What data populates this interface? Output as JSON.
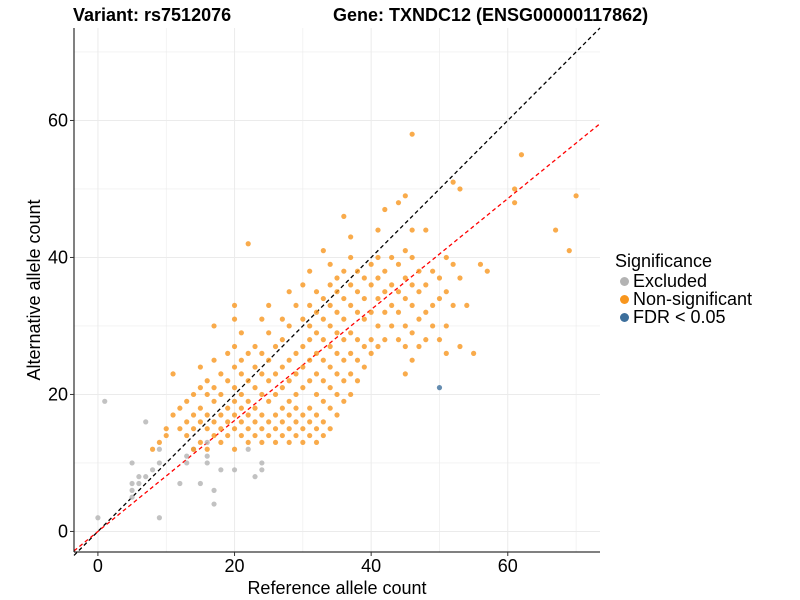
{
  "header": {
    "variant": "Variant: rs7512076",
    "gene": "Gene: TXNDC12 (ENSG00000117862)"
  },
  "legend": {
    "title": "Significance",
    "items": [
      {
        "label": "Excluded",
        "color": "#b3b3b3"
      },
      {
        "label": "Non-significant",
        "color": "#f8961e"
      },
      {
        "label": "FDR < 0.05",
        "color": "#3d6f9c"
      }
    ]
  },
  "chart_data": {
    "type": "scatter",
    "xlabel": "Reference allele count",
    "ylabel": "Alternative allele count",
    "xlim": [
      -3.5,
      73.5
    ],
    "ylim": [
      -3,
      73.5
    ],
    "xticks": [
      0,
      20,
      40,
      60
    ],
    "yticks": [
      0,
      20,
      40,
      60
    ],
    "grid": true,
    "legend_position": "right",
    "reference_lines": [
      {
        "name": "identity",
        "slope": 1,
        "intercept": 0,
        "color": "#000000",
        "style": "dashed"
      },
      {
        "name": "fit",
        "slope": 0.81,
        "intercept": 0,
        "color": "#ff0000",
        "style": "dashed"
      }
    ],
    "series": [
      {
        "name": "Excluded",
        "color": "#b3b3b3",
        "points": [
          [
            0,
            2
          ],
          [
            1,
            19
          ],
          [
            5,
            5
          ],
          [
            5,
            6
          ],
          [
            5,
            7
          ],
          [
            5,
            10
          ],
          [
            6,
            7
          ],
          [
            6,
            8
          ],
          [
            7,
            8
          ],
          [
            7,
            16
          ],
          [
            8,
            9
          ],
          [
            9,
            2
          ],
          [
            9,
            10
          ],
          [
            9,
            12
          ],
          [
            12,
            7
          ],
          [
            13,
            10
          ],
          [
            13,
            11
          ],
          [
            14,
            12
          ],
          [
            15,
            7
          ],
          [
            16,
            10
          ],
          [
            16,
            11
          ],
          [
            16,
            13
          ],
          [
            17,
            4
          ],
          [
            17,
            6
          ],
          [
            18,
            9
          ],
          [
            20,
            9
          ],
          [
            22,
            12
          ],
          [
            23,
            8
          ],
          [
            24,
            9
          ],
          [
            24,
            10
          ]
        ]
      },
      {
        "name": "Non-significant",
        "color": "#f8961e",
        "points": [
          [
            8,
            12
          ],
          [
            9,
            13
          ],
          [
            10,
            14
          ],
          [
            10,
            15
          ],
          [
            11,
            17
          ],
          [
            11,
            23
          ],
          [
            12,
            15
          ],
          [
            12,
            18
          ],
          [
            13,
            14
          ],
          [
            13,
            16
          ],
          [
            13,
            19
          ],
          [
            14,
            12
          ],
          [
            14,
            15
          ],
          [
            14,
            17
          ],
          [
            14,
            20
          ],
          [
            15,
            13
          ],
          [
            15,
            16
          ],
          [
            15,
            18
          ],
          [
            15,
            21
          ],
          [
            15,
            24
          ],
          [
            16,
            12
          ],
          [
            16,
            15
          ],
          [
            16,
            17
          ],
          [
            16,
            20
          ],
          [
            16,
            22
          ],
          [
            17,
            14
          ],
          [
            17,
            16
          ],
          [
            17,
            19
          ],
          [
            17,
            21
          ],
          [
            17,
            25
          ],
          [
            17,
            30
          ],
          [
            18,
            13
          ],
          [
            18,
            15
          ],
          [
            18,
            17
          ],
          [
            18,
            20
          ],
          [
            18,
            23
          ],
          [
            19,
            14
          ],
          [
            19,
            16
          ],
          [
            19,
            18
          ],
          [
            19,
            22
          ],
          [
            19,
            26
          ],
          [
            20,
            12
          ],
          [
            20,
            15
          ],
          [
            20,
            17
          ],
          [
            20,
            19
          ],
          [
            20,
            21
          ],
          [
            20,
            24
          ],
          [
            20,
            27
          ],
          [
            20,
            31
          ],
          [
            20,
            33
          ],
          [
            21,
            14
          ],
          [
            21,
            16
          ],
          [
            21,
            18
          ],
          [
            21,
            20
          ],
          [
            21,
            23
          ],
          [
            21,
            25
          ],
          [
            21,
            29
          ],
          [
            22,
            13
          ],
          [
            22,
            15
          ],
          [
            22,
            17
          ],
          [
            22,
            19
          ],
          [
            22,
            22
          ],
          [
            22,
            26
          ],
          [
            22,
            42
          ],
          [
            23,
            14
          ],
          [
            23,
            16
          ],
          [
            23,
            18
          ],
          [
            23,
            21
          ],
          [
            23,
            24
          ],
          [
            23,
            27
          ],
          [
            24,
            13
          ],
          [
            24,
            15
          ],
          [
            24,
            17
          ],
          [
            24,
            20
          ],
          [
            24,
            23
          ],
          [
            24,
            26
          ],
          [
            24,
            31
          ],
          [
            25,
            14
          ],
          [
            25,
            16
          ],
          [
            25,
            19
          ],
          [
            25,
            22
          ],
          [
            25,
            25
          ],
          [
            25,
            29
          ],
          [
            25,
            33
          ],
          [
            26,
            13
          ],
          [
            26,
            15
          ],
          [
            26,
            17
          ],
          [
            26,
            20
          ],
          [
            26,
            23
          ],
          [
            26,
            27
          ],
          [
            27,
            14
          ],
          [
            27,
            16
          ],
          [
            27,
            18
          ],
          [
            27,
            21
          ],
          [
            27,
            24
          ],
          [
            27,
            28
          ],
          [
            27,
            31
          ],
          [
            28,
            13
          ],
          [
            28,
            15
          ],
          [
            28,
            17
          ],
          [
            28,
            19
          ],
          [
            28,
            22
          ],
          [
            28,
            25
          ],
          [
            28,
            30
          ],
          [
            28,
            35
          ],
          [
            29,
            14
          ],
          [
            29,
            16
          ],
          [
            29,
            18
          ],
          [
            29,
            20
          ],
          [
            29,
            23
          ],
          [
            29,
            26
          ],
          [
            29,
            33
          ],
          [
            30,
            13
          ],
          [
            30,
            15
          ],
          [
            30,
            17
          ],
          [
            30,
            21
          ],
          [
            30,
            24
          ],
          [
            30,
            27
          ],
          [
            30,
            31
          ],
          [
            30,
            36
          ],
          [
            31,
            14
          ],
          [
            31,
            16
          ],
          [
            31,
            18
          ],
          [
            31,
            22
          ],
          [
            31,
            25
          ],
          [
            31,
            28
          ],
          [
            31,
            30
          ],
          [
            31,
            33
          ],
          [
            31,
            38
          ],
          [
            32,
            13
          ],
          [
            32,
            15
          ],
          [
            32,
            17
          ],
          [
            32,
            20
          ],
          [
            32,
            23
          ],
          [
            32,
            26
          ],
          [
            32,
            29
          ],
          [
            32,
            32
          ],
          [
            32,
            35
          ],
          [
            33,
            14
          ],
          [
            33,
            16
          ],
          [
            33,
            19
          ],
          [
            33,
            22
          ],
          [
            33,
            25
          ],
          [
            33,
            28
          ],
          [
            33,
            31
          ],
          [
            33,
            34
          ],
          [
            33,
            41
          ],
          [
            34,
            15
          ],
          [
            34,
            18
          ],
          [
            34,
            21
          ],
          [
            34,
            24
          ],
          [
            34,
            27
          ],
          [
            34,
            30
          ],
          [
            34,
            33
          ],
          [
            34,
            36
          ],
          [
            34,
            39
          ],
          [
            35,
            17
          ],
          [
            35,
            20
          ],
          [
            35,
            23
          ],
          [
            35,
            26
          ],
          [
            35,
            29
          ],
          [
            35,
            32
          ],
          [
            35,
            35
          ],
          [
            35,
            37
          ],
          [
            36,
            19
          ],
          [
            36,
            22
          ],
          [
            36,
            25
          ],
          [
            36,
            28
          ],
          [
            36,
            31
          ],
          [
            36,
            34
          ],
          [
            36,
            38
          ],
          [
            36,
            46
          ],
          [
            37,
            20
          ],
          [
            37,
            23
          ],
          [
            37,
            26
          ],
          [
            37,
            29
          ],
          [
            37,
            33
          ],
          [
            37,
            36
          ],
          [
            37,
            40
          ],
          [
            37,
            43
          ],
          [
            38,
            22
          ],
          [
            38,
            25
          ],
          [
            38,
            28
          ],
          [
            38,
            32
          ],
          [
            38,
            35
          ],
          [
            38,
            38
          ],
          [
            39,
            24
          ],
          [
            39,
            27
          ],
          [
            39,
            31
          ],
          [
            39,
            34
          ],
          [
            39,
            37
          ],
          [
            40,
            26
          ],
          [
            40,
            28
          ],
          [
            40,
            32
          ],
          [
            40,
            36
          ],
          [
            40,
            39
          ],
          [
            41,
            27
          ],
          [
            41,
            30
          ],
          [
            41,
            34
          ],
          [
            41,
            37
          ],
          [
            41,
            40
          ],
          [
            41,
            44
          ],
          [
            42,
            28
          ],
          [
            42,
            32
          ],
          [
            42,
            35
          ],
          [
            42,
            38
          ],
          [
            42,
            47
          ],
          [
            43,
            30
          ],
          [
            43,
            33
          ],
          [
            43,
            36
          ],
          [
            43,
            40
          ],
          [
            44,
            28
          ],
          [
            44,
            32
          ],
          [
            44,
            35
          ],
          [
            44,
            39
          ],
          [
            44,
            48
          ],
          [
            45,
            23
          ],
          [
            45,
            27
          ],
          [
            45,
            30
          ],
          [
            45,
            34
          ],
          [
            45,
            37
          ],
          [
            45,
            41
          ],
          [
            45,
            49
          ],
          [
            46,
            25
          ],
          [
            46,
            29
          ],
          [
            46,
            33
          ],
          [
            46,
            36
          ],
          [
            46,
            40
          ],
          [
            46,
            44
          ],
          [
            46,
            58
          ],
          [
            47,
            27
          ],
          [
            47,
            31
          ],
          [
            47,
            35
          ],
          [
            47,
            38
          ],
          [
            48,
            28
          ],
          [
            48,
            32
          ],
          [
            48,
            36
          ],
          [
            48,
            44
          ],
          [
            49,
            30
          ],
          [
            49,
            33
          ],
          [
            49,
            38
          ],
          [
            50,
            28
          ],
          [
            50,
            34
          ],
          [
            50,
            37
          ],
          [
            51,
            26
          ],
          [
            51,
            30
          ],
          [
            51,
            35
          ],
          [
            51,
            40
          ],
          [
            52,
            33
          ],
          [
            52,
            39
          ],
          [
            52,
            51
          ],
          [
            53,
            27
          ],
          [
            53,
            37
          ],
          [
            53,
            50
          ],
          [
            54,
            33
          ],
          [
            55,
            26
          ],
          [
            56,
            39
          ],
          [
            57,
            38
          ],
          [
            61,
            48
          ],
          [
            61,
            50
          ],
          [
            62,
            55
          ],
          [
            67,
            44
          ],
          [
            69,
            41
          ],
          [
            70,
            49
          ]
        ]
      },
      {
        "name": "FDR < 0.05",
        "color": "#3d6f9c",
        "points": [
          [
            50,
            21
          ]
        ]
      }
    ]
  }
}
